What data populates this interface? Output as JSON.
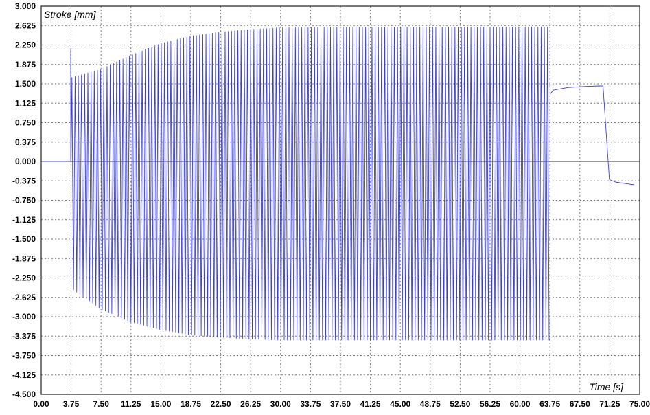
{
  "chart_data": {
    "type": "line",
    "title": "",
    "ylabel": "Stroke [mm]",
    "xlabel": "Time [s]",
    "xlim": [
      0,
      75
    ],
    "ylim": [
      -4.5,
      3.0
    ],
    "grid": true,
    "legend": "none",
    "x_ticks": [
      "0.00",
      "3.75",
      "7.50",
      "11.25",
      "15.00",
      "18.75",
      "22.50",
      "26.25",
      "30.00",
      "33.75",
      "37.50",
      "41.25",
      "45.00",
      "48.75",
      "52.50",
      "56.25",
      "60.00",
      "63.75",
      "67.50",
      "71.25",
      "75.00"
    ],
    "y_ticks": [
      "3.000",
      "2.625",
      "2.250",
      "1.875",
      "1.500",
      "1.125",
      "0.750",
      "0.375",
      "0.000",
      "-0.375",
      "-0.750",
      "-1.125",
      "-1.500",
      "-1.875",
      "-2.250",
      "-2.625",
      "-3.000",
      "-3.375",
      "-3.750",
      "-4.125",
      "-4.500"
    ],
    "series": [
      {
        "color": "#3b3fd6",
        "segments": [
          {
            "kind": "flat",
            "x": [
              0,
              3.6
            ],
            "y": 0.0
          },
          {
            "kind": "spike",
            "x": 3.7,
            "y": [
              0.0,
              2.18
            ]
          },
          {
            "kind": "oscillation",
            "x_start": 3.75,
            "x_end": 63.75,
            "cycles": 150,
            "upper_envelope": {
              "x": [
                3.75,
                7.5,
                11.25,
                15.0,
                18.75,
                22.5,
                26.25,
                30.0,
                63.75
              ],
              "y": [
                1.62,
                1.78,
                2.05,
                2.28,
                2.42,
                2.5,
                2.55,
                2.58,
                2.6
              ]
            },
            "lower_envelope": {
              "x": [
                3.75,
                7.5,
                11.25,
                15.0,
                18.75,
                22.5,
                26.25,
                30.0,
                63.75
              ],
              "y": [
                -2.45,
                -2.85,
                -3.1,
                -3.25,
                -3.35,
                -3.4,
                -3.43,
                -3.45,
                -3.45
              ]
            }
          },
          {
            "kind": "hold",
            "x": [
              63.75,
              64.2,
              66.0,
              68.0,
              70.0,
              70.4,
              71.2,
              72.0,
              74.3
            ],
            "y": [
              1.3,
              1.38,
              1.43,
              1.45,
              1.46,
              1.46,
              -0.35,
              -0.4,
              -0.45
            ]
          }
        ]
      }
    ]
  }
}
